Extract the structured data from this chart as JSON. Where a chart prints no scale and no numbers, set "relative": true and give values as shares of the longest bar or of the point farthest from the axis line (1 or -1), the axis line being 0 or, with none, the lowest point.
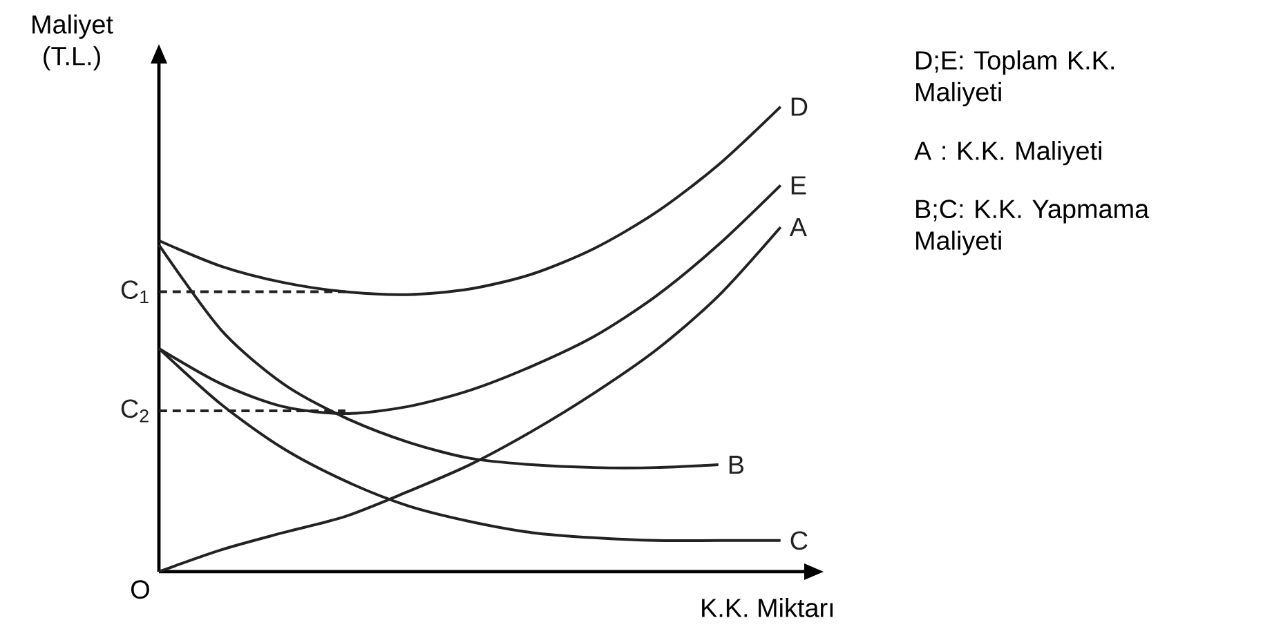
{
  "chart_data": {
    "type": "line",
    "relative": true,
    "xlabel": "K.K. Miktarı",
    "ylabel": "Maliyet (T.L.)",
    "categories": [
      null,
      null,
      null,
      null,
      null,
      null,
      null,
      null,
      null,
      null,
      null
    ],
    "series": [
      {
        "name": "D",
        "color": "#222222",
        "values": [
          0.712,
          0.657,
          0.622,
          0.602,
          0.596,
          0.608,
          0.64,
          0.695,
          0.773,
          0.875,
          1.0
        ]
      },
      {
        "name": "E",
        "color": "#222222",
        "values": [
          0.48,
          0.404,
          0.355,
          0.34,
          0.355,
          0.39,
          0.442,
          0.506,
          0.593,
          0.703,
          0.831
        ]
      },
      {
        "name": "A",
        "color": "#222222",
        "values": [
          0,
          0.047,
          0.084,
          0.119,
          0.172,
          0.23,
          0.302,
          0.384,
          0.477,
          0.593,
          0.741
        ]
      },
      {
        "name": "B",
        "color": "#222222",
        "values": [
          0.703,
          0.52,
          0.404,
          0.331,
          0.279,
          0.244,
          0.23,
          0.224,
          0.224,
          0.23,
          null
        ]
      },
      {
        "name": "C",
        "color": "#222222",
        "values": [
          0.48,
          0.36,
          0.265,
          0.195,
          0.142,
          0.108,
          0.084,
          0.073,
          0.067,
          0.067,
          0.067
        ]
      },
      {
        "name": "C$_{1}$",
        "color": "#222222",
        "line_style": "dashed",
        "values": [
          0.602,
          0.602,
          0.602,
          0.602,
          null,
          null,
          null,
          null,
          null,
          null,
          null
        ]
      },
      {
        "name": "C$_{2}$",
        "color": "#222222",
        "line_style": "dashed",
        "values": [
          0.346,
          0.346,
          0.346,
          0.346,
          null,
          null,
          null,
          null,
          null,
          null,
          null
        ]
      }
    ],
    "line_style": "solid",
    "marker": "none",
    "legend": false,
    "annotations": [
      "O",
      "D;E: Toplam K.K. Maliyeti",
      "A : K.K. Maliyeti",
      "B;C: K.K. Yapmama Maliyeti"
    ]
  }
}
